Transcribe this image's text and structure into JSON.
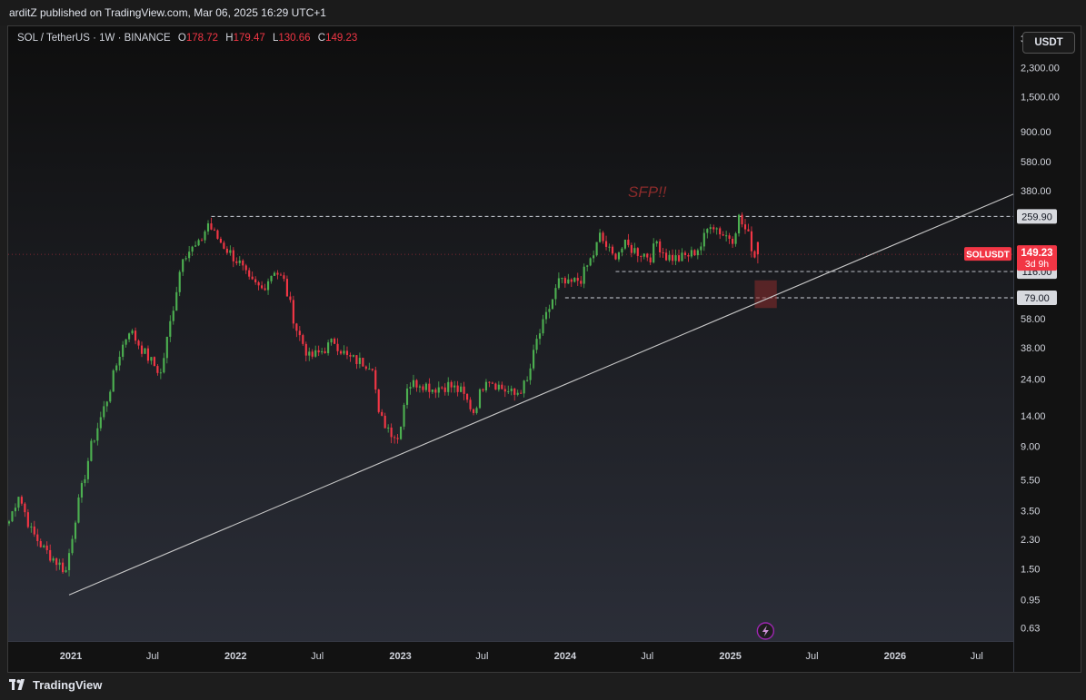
{
  "header": {
    "publisher_line": "arditZ published on TradingView.com, Mar 06, 2025 16:29 UTC+1"
  },
  "legend": {
    "symbol_text": "SOL / TetherUS · 1W · BINANCE",
    "open_key": "O",
    "open_value": "178.72",
    "high_key": "H",
    "high_value": "179.47",
    "low_key": "L",
    "low_value": "130.66",
    "close_key": "C",
    "close_value": "149.23"
  },
  "currency_button": "USDT",
  "footer": {
    "brand": "TradingView"
  },
  "colors": {
    "up": "#4caf50",
    "down": "#f23645",
    "trendline": "#c8c8c8",
    "annotation": "#8b2b2b"
  },
  "chart_data": {
    "type": "candlestick",
    "scale": "log",
    "xlim": [
      "2020-08-15",
      "2026-09-20"
    ],
    "ylim": [
      0.52,
      4200
    ],
    "y_ticks": [
      "3,500.00",
      "2,300.00",
      "1,500.00",
      "900.00",
      "580.00",
      "380.00",
      "259.90",
      "116.00",
      "79.00",
      "58.00",
      "38.00",
      "24.00",
      "14.00",
      "9.00",
      "5.50",
      "3.50",
      "2.30",
      "1.50",
      "0.95",
      "0.63"
    ],
    "x_ticks": [
      {
        "label": "2021",
        "date": "2021-01-01"
      },
      {
        "label": "Jul",
        "date": "2021-07-01"
      },
      {
        "label": "2022",
        "date": "2022-01-01"
      },
      {
        "label": "Jul",
        "date": "2022-07-01"
      },
      {
        "label": "2023",
        "date": "2023-01-01"
      },
      {
        "label": "Jul",
        "date": "2023-07-01"
      },
      {
        "label": "2024",
        "date": "2024-01-01"
      },
      {
        "label": "Jul",
        "date": "2024-07-01"
      },
      {
        "label": "2025",
        "date": "2025-01-01"
      },
      {
        "label": "Jul",
        "date": "2025-07-01"
      },
      {
        "label": "2026",
        "date": "2026-01-01"
      },
      {
        "label": "Jul",
        "date": "2026-07-01"
      }
    ],
    "price_path": [
      [
        "2020-08-17",
        3.0
      ],
      [
        "2020-09-07",
        4.5
      ],
      [
        "2020-10-05",
        2.6
      ],
      [
        "2020-11-02",
        2.0
      ],
      [
        "2020-12-21",
        1.45
      ],
      [
        "2021-01-11",
        3.2
      ],
      [
        "2021-02-15",
        9.0
      ],
      [
        "2021-03-22",
        18
      ],
      [
        "2021-04-19",
        35
      ],
      [
        "2021-05-10",
        50
      ],
      [
        "2021-06-14",
        35
      ],
      [
        "2021-07-19",
        26
      ],
      [
        "2021-08-16",
        70
      ],
      [
        "2021-09-06",
        150
      ],
      [
        "2021-10-11",
        170
      ],
      [
        "2021-11-01",
        235
      ],
      [
        "2021-11-15",
        200
      ],
      [
        "2021-12-13",
        160
      ],
      [
        "2022-01-10",
        130
      ],
      [
        "2022-01-31",
        100
      ],
      [
        "2022-02-28",
        90
      ],
      [
        "2022-03-28",
        120
      ],
      [
        "2022-04-18",
        100
      ],
      [
        "2022-05-16",
        50
      ],
      [
        "2022-06-13",
        33
      ],
      [
        "2022-07-04",
        35
      ],
      [
        "2022-08-08",
        42
      ],
      [
        "2022-09-05",
        33
      ],
      [
        "2022-10-03",
        31
      ],
      [
        "2022-10-31",
        30
      ],
      [
        "2022-11-14",
        14
      ],
      [
        "2022-12-26",
        10
      ],
      [
        "2023-01-16",
        22
      ],
      [
        "2023-02-13",
        23
      ],
      [
        "2023-03-13",
        21
      ],
      [
        "2023-04-17",
        22
      ],
      [
        "2023-05-15",
        20
      ],
      [
        "2023-06-12",
        15
      ],
      [
        "2023-07-10",
        25
      ],
      [
        "2023-08-14",
        21
      ],
      [
        "2023-09-11",
        19
      ],
      [
        "2023-10-09",
        23
      ],
      [
        "2023-10-30",
        42
      ],
      [
        "2023-11-20",
        60
      ],
      [
        "2023-12-18",
        100
      ],
      [
        "2024-01-08",
        95
      ],
      [
        "2024-02-05",
        105
      ],
      [
        "2024-03-04",
        150
      ],
      [
        "2024-03-18",
        195
      ],
      [
        "2024-04-15",
        145
      ],
      [
        "2024-05-13",
        170
      ],
      [
        "2024-06-10",
        155
      ],
      [
        "2024-07-08",
        145
      ],
      [
        "2024-07-22",
        180
      ],
      [
        "2024-08-12",
        145
      ],
      [
        "2024-09-09",
        140
      ],
      [
        "2024-10-07",
        150
      ],
      [
        "2024-10-28",
        170
      ],
      [
        "2024-11-18",
        240
      ],
      [
        "2024-12-16",
        200
      ],
      [
        "2025-01-06",
        190
      ],
      [
        "2025-01-20",
        255
      ],
      [
        "2025-02-10",
        195
      ],
      [
        "2025-02-24",
        145
      ],
      [
        "2025-03-03",
        149.23
      ]
    ],
    "last_candle": {
      "open": 178.72,
      "high": 179.47,
      "low": 130.66,
      "close": 149.23
    },
    "price_label": {
      "symbol": "SOLUSDT",
      "price": "149.23",
      "countdown": "3d 9h"
    },
    "levels": [
      {
        "value": 259.9,
        "label": "259.90",
        "from": "2021-11-08"
      },
      {
        "value": 116.0,
        "label": "116.00",
        "from": "2024-04-22"
      },
      {
        "value": 79.0,
        "label": "79.00",
        "from": "2024-01-01"
      }
    ],
    "trendline": {
      "from": [
        "2020-12-28",
        1.02
      ],
      "to": [
        "2026-09-20",
        360
      ]
    },
    "annotation": {
      "text": "SFP!!",
      "date": "2024-07-01",
      "value": 345
    },
    "zone": {
      "from": "2025-02-24",
      "to": "2025-04-14",
      "low": 68,
      "high": 102
    }
  }
}
